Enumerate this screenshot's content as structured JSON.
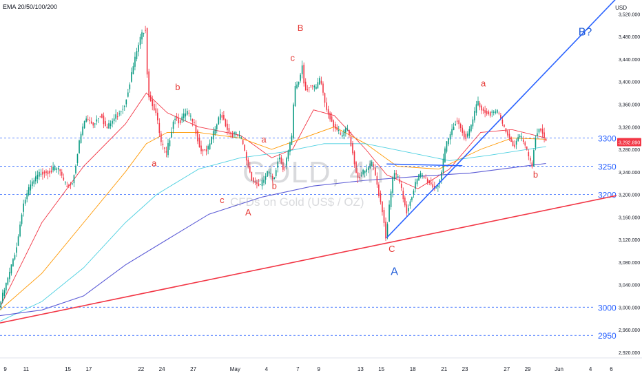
{
  "indicator_label": "EMA 20/50/100/200",
  "currency": "USD",
  "watermark": {
    "symbol": "GOLD, 4h",
    "description": "CFDs on Gold (US$ / OZ)"
  },
  "price_tag": "3,292.890",
  "colors": {
    "up": "#089981",
    "down": "#f23645",
    "ema20": "#f23645",
    "ema50": "#ff9800",
    "ema100": "#4dd0e1",
    "ema200": "#5b5bd6",
    "level_line": "#2962ff",
    "trend_red": "#f23645",
    "trend_blue": "#2962ff",
    "wave_red": "#e53935",
    "wave_blue": "#1e5bd8"
  },
  "chart_data": {
    "type": "candlestick",
    "title": "GOLD, 4h",
    "subtitle": "CFDs on Gold (US$ / OZ)",
    "y_unit": "USD",
    "ylim": [
      2910,
      3545
    ],
    "xlim": [
      "2025-04-08T12:00",
      "2025-06-06T12:00"
    ],
    "y_ticks": [
      "3,520.000",
      "3,480.000",
      "3,440.000",
      "3,400.000",
      "3,360.000",
      "3,320.000",
      "3,280.000",
      "3,240.000",
      "3,200.000",
      "3,160.000",
      "3,120.000",
      "3,080.000",
      "3,040.000",
      "3,000.000",
      "2,960.000",
      "2,920.000"
    ],
    "x_ticks": [
      {
        "label": "9",
        "t": "2025-04-09"
      },
      {
        "label": "11",
        "t": "2025-04-11"
      },
      {
        "label": "15",
        "t": "2025-04-15"
      },
      {
        "label": "17",
        "t": "2025-04-17"
      },
      {
        "label": "22",
        "t": "2025-04-22"
      },
      {
        "label": "24",
        "t": "2025-04-24"
      },
      {
        "label": "27",
        "t": "2025-04-27"
      },
      {
        "label": "May",
        "t": "2025-05-01"
      },
      {
        "label": "4",
        "t": "2025-05-04"
      },
      {
        "label": "7",
        "t": "2025-05-07"
      },
      {
        "label": "9",
        "t": "2025-05-09"
      },
      {
        "label": "13",
        "t": "2025-05-13"
      },
      {
        "label": "15",
        "t": "2025-05-15"
      },
      {
        "label": "18",
        "t": "2025-05-18"
      },
      {
        "label": "21",
        "t": "2025-05-21"
      },
      {
        "label": "23",
        "t": "2025-05-23"
      },
      {
        "label": "27",
        "t": "2025-05-27"
      },
      {
        "label": "29",
        "t": "2025-05-29"
      },
      {
        "label": "Jun",
        "t": "2025-06-01"
      },
      {
        "label": "4",
        "t": "2025-06-04"
      },
      {
        "label": "6",
        "t": "2025-06-06"
      }
    ],
    "grid": false,
    "last_price": 3292.89,
    "price_path": [
      [
        "2025-04-08T12:00",
        3000
      ],
      [
        "2025-04-09T12:00",
        3060
      ],
      [
        "2025-04-10T06:00",
        3115
      ],
      [
        "2025-04-10T18:00",
        3180
      ],
      [
        "2025-04-11T12:00",
        3215
      ],
      [
        "2025-04-12T12:00",
        3240
      ],
      [
        "2025-04-14T06:00",
        3245
      ],
      [
        "2025-04-14T18:00",
        3215
      ],
      [
        "2025-04-15T12:00",
        3220
      ],
      [
        "2025-04-16T06:00",
        3300
      ],
      [
        "2025-04-16T18:00",
        3335
      ],
      [
        "2025-04-17T12:00",
        3325
      ],
      [
        "2025-04-18T06:00",
        3345
      ],
      [
        "2025-04-18T18:00",
        3315
      ],
      [
        "2025-04-20T12:00",
        3360
      ],
      [
        "2025-04-21T06:00",
        3420
      ],
      [
        "2025-04-21T18:00",
        3460
      ],
      [
        "2025-04-22T06:00",
        3490
      ],
      [
        "2025-04-22T12:00",
        3495
      ],
      [
        "2025-04-22T18:00",
        3380
      ],
      [
        "2025-04-23T12:00",
        3345
      ],
      [
        "2025-04-24T00:00",
        3290
      ],
      [
        "2025-04-24T12:00",
        3270
      ],
      [
        "2025-04-25T06:00",
        3340
      ],
      [
        "2025-04-25T18:00",
        3330
      ],
      [
        "2025-04-26T12:00",
        3345
      ],
      [
        "2025-04-27T06:00",
        3320
      ],
      [
        "2025-04-27T18:00",
        3280
      ],
      [
        "2025-04-28T12:00",
        3280
      ],
      [
        "2025-04-29T06:00",
        3320
      ],
      [
        "2025-04-29T18:00",
        3345
      ],
      [
        "2025-04-30T12:00",
        3310
      ],
      [
        "2025-05-01T06:00",
        3305
      ],
      [
        "2025-05-01T18:00",
        3295
      ],
      [
        "2025-05-02T06:00",
        3255
      ],
      [
        "2025-05-02T18:00",
        3225
      ],
      [
        "2025-05-03T12:00",
        3215
      ],
      [
        "2025-05-04T06:00",
        3240
      ],
      [
        "2025-05-04T18:00",
        3225
      ],
      [
        "2025-05-05T06:00",
        3270
      ],
      [
        "2025-05-05T18:00",
        3245
      ],
      [
        "2025-05-06T12:00",
        3300
      ],
      [
        "2025-05-06T18:00",
        3385
      ],
      [
        "2025-05-07T06:00",
        3405
      ],
      [
        "2025-05-07T12:00",
        3430
      ],
      [
        "2025-05-07T18:00",
        3385
      ],
      [
        "2025-05-08T06:00",
        3395
      ],
      [
        "2025-05-08T18:00",
        3385
      ],
      [
        "2025-05-09T06:00",
        3405
      ],
      [
        "2025-05-09T18:00",
        3355
      ],
      [
        "2025-05-10T12:00",
        3325
      ],
      [
        "2025-05-11T06:00",
        3300
      ],
      [
        "2025-05-11T18:00",
        3320
      ],
      [
        "2025-05-12T06:00",
        3285
      ],
      [
        "2025-05-12T18:00",
        3230
      ],
      [
        "2025-05-13T12:00",
        3240
      ],
      [
        "2025-05-14T06:00",
        3255
      ],
      [
        "2025-05-14T18:00",
        3210
      ],
      [
        "2025-05-15T06:00",
        3165
      ],
      [
        "2025-05-15T12:00",
        3125
      ],
      [
        "2025-05-15T18:00",
        3165
      ],
      [
        "2025-05-16T06:00",
        3240
      ],
      [
        "2025-05-16T18:00",
        3225
      ],
      [
        "2025-05-17T12:00",
        3170
      ],
      [
        "2025-05-18T06:00",
        3215
      ],
      [
        "2025-05-18T18:00",
        3235
      ],
      [
        "2025-05-19T12:00",
        3225
      ],
      [
        "2025-05-20T06:00",
        3210
      ],
      [
        "2025-05-20T18:00",
        3230
      ],
      [
        "2025-05-21T06:00",
        3285
      ],
      [
        "2025-05-21T18:00",
        3310
      ],
      [
        "2025-05-22T06:00",
        3335
      ],
      [
        "2025-05-22T18:00",
        3315
      ],
      [
        "2025-05-23T06:00",
        3300
      ],
      [
        "2025-05-23T18:00",
        3325
      ],
      [
        "2025-05-24T06:00",
        3365
      ],
      [
        "2025-05-24T18:00",
        3350
      ],
      [
        "2025-05-25T12:00",
        3345
      ],
      [
        "2025-05-26T06:00",
        3345
      ],
      [
        "2025-05-26T18:00",
        3320
      ],
      [
        "2025-05-27T06:00",
        3305
      ],
      [
        "2025-05-27T18:00",
        3285
      ],
      [
        "2025-05-28T06:00",
        3305
      ],
      [
        "2025-05-28T18:00",
        3290
      ],
      [
        "2025-05-29T06:00",
        3260
      ],
      [
        "2025-05-29T12:00",
        3250
      ],
      [
        "2025-05-29T18:00",
        3300
      ],
      [
        "2025-05-30T06:00",
        3320
      ],
      [
        "2025-05-30T12:00",
        3310
      ],
      [
        "2025-05-30T18:00",
        3293
      ]
    ],
    "ema_series": [
      {
        "period": 20,
        "points": [
          [
            "2025-04-08T12:00",
            3000
          ],
          [
            "2025-04-12T12:00",
            3150
          ],
          [
            "2025-04-16T12:00",
            3250
          ],
          [
            "2025-04-20T12:00",
            3325
          ],
          [
            "2025-04-22T12:00",
            3380
          ],
          [
            "2025-04-24T12:00",
            3345
          ],
          [
            "2025-04-27T12:00",
            3320
          ],
          [
            "2025-05-01T12:00",
            3305
          ],
          [
            "2025-05-04T12:00",
            3265
          ],
          [
            "2025-05-06T12:00",
            3280
          ],
          [
            "2025-05-08T12:00",
            3350
          ],
          [
            "2025-05-10T12:00",
            3340
          ],
          [
            "2025-05-13T12:00",
            3280
          ],
          [
            "2025-05-15T12:00",
            3235
          ],
          [
            "2025-05-18T12:00",
            3210
          ],
          [
            "2025-05-21T12:00",
            3245
          ],
          [
            "2025-05-24T12:00",
            3310
          ],
          [
            "2025-05-27T12:00",
            3315
          ],
          [
            "2025-05-30T18:00",
            3300
          ]
        ]
      },
      {
        "period": 50,
        "points": [
          [
            "2025-04-08T12:00",
            2995
          ],
          [
            "2025-04-12T12:00",
            3060
          ],
          [
            "2025-04-16T12:00",
            3150
          ],
          [
            "2025-04-20T12:00",
            3240
          ],
          [
            "2025-04-22T12:00",
            3290
          ],
          [
            "2025-04-24T12:00",
            3310
          ],
          [
            "2025-04-27T12:00",
            3310
          ],
          [
            "2025-05-01T12:00",
            3300
          ],
          [
            "2025-05-04T12:00",
            3280
          ],
          [
            "2025-05-07T12:00",
            3300
          ],
          [
            "2025-05-10T12:00",
            3320
          ],
          [
            "2025-05-13T12:00",
            3290
          ],
          [
            "2025-05-16T12:00",
            3250
          ],
          [
            "2025-05-20T12:00",
            3245
          ],
          [
            "2025-05-24T12:00",
            3280
          ],
          [
            "2025-05-27T12:00",
            3300
          ],
          [
            "2025-05-30T18:00",
            3298
          ]
        ]
      },
      {
        "period": 100,
        "points": [
          [
            "2025-04-08T12:00",
            2975
          ],
          [
            "2025-04-12T12:00",
            3010
          ],
          [
            "2025-04-16T12:00",
            3070
          ],
          [
            "2025-04-20T12:00",
            3150
          ],
          [
            "2025-04-23T12:00",
            3200
          ],
          [
            "2025-04-27T12:00",
            3245
          ],
          [
            "2025-05-01T12:00",
            3265
          ],
          [
            "2025-05-05T12:00",
            3275
          ],
          [
            "2025-05-09T12:00",
            3290
          ],
          [
            "2025-05-13T12:00",
            3290
          ],
          [
            "2025-05-17T12:00",
            3275
          ],
          [
            "2025-05-21T12:00",
            3260
          ],
          [
            "2025-05-25T12:00",
            3270
          ],
          [
            "2025-05-30T18:00",
            3285
          ]
        ]
      },
      {
        "period": 200,
        "points": [
          [
            "2025-04-08T12:00",
            2985
          ],
          [
            "2025-04-12T12:00",
            2995
          ],
          [
            "2025-04-16T12:00",
            3020
          ],
          [
            "2025-04-20T12:00",
            3075
          ],
          [
            "2025-04-24T12:00",
            3120
          ],
          [
            "2025-04-28T12:00",
            3165
          ],
          [
            "2025-05-03T12:00",
            3195
          ],
          [
            "2025-05-08T12:00",
            3215
          ],
          [
            "2025-05-13T12:00",
            3225
          ],
          [
            "2025-05-18T12:00",
            3232
          ],
          [
            "2025-05-23T12:00",
            3238
          ],
          [
            "2025-05-30T18:00",
            3255
          ]
        ]
      }
    ],
    "horizontal_levels": [
      {
        "label": "3300",
        "value": 3300
      },
      {
        "label": "3250",
        "value": 3250
      },
      {
        "label": "3200",
        "value": 3200
      },
      {
        "label": "3000",
        "value": 3000
      },
      {
        "label": "2950",
        "value": 2950
      }
    ],
    "trend_lines": [
      {
        "name": "red-support",
        "color": "red",
        "from": [
          "2025-04-08T12:00",
          2972
        ],
        "to": [
          "2025-06-06T12:00",
          3198
        ]
      },
      {
        "name": "blue-channel",
        "color": "blue",
        "from": [
          "2025-05-15T12:00",
          3123
        ],
        "to": [
          "2025-06-06T12:00",
          3548
        ]
      },
      {
        "name": "blue-neckline",
        "color": "blue",
        "from": [
          "2025-05-15T12:00",
          3254
        ],
        "to": [
          "2025-05-22T18:00",
          3251
        ]
      }
    ],
    "annotations": [
      {
        "text": "a",
        "t": "2025-04-23T06:00",
        "y": 3250,
        "color": "red"
      },
      {
        "text": "b",
        "t": "2025-04-25T12:00",
        "y": 3385,
        "color": "red"
      },
      {
        "text": "c",
        "t": "2025-04-29T18:00",
        "y": 3185,
        "color": "red"
      },
      {
        "text": "A",
        "t": "2025-05-02T06:00",
        "y": 3163,
        "color": "red"
      },
      {
        "text": "a",
        "t": "2025-05-03T18:00",
        "y": 3292,
        "color": "red"
      },
      {
        "text": "b",
        "t": "2025-05-04T18:00",
        "y": 3210,
        "color": "red"
      },
      {
        "text": "c",
        "t": "2025-05-06T12:00",
        "y": 3437,
        "color": "red"
      },
      {
        "text": "B",
        "t": "2025-05-07T06:00",
        "y": 3490,
        "color": "red"
      },
      {
        "text": "C",
        "t": "2025-05-16T00:00",
        "y": 3098,
        "color": "red"
      },
      {
        "text": "A",
        "t": "2025-05-16T06:00",
        "y": 3057,
        "color": "blue"
      },
      {
        "text": "a",
        "t": "2025-05-24T18:00",
        "y": 3392,
        "color": "red"
      },
      {
        "text": "b",
        "t": "2025-05-29T18:00",
        "y": 3230,
        "color": "red"
      },
      {
        "text": "B?",
        "t": "2025-06-03T12:00",
        "y": 3482,
        "color": "blue"
      }
    ]
  }
}
